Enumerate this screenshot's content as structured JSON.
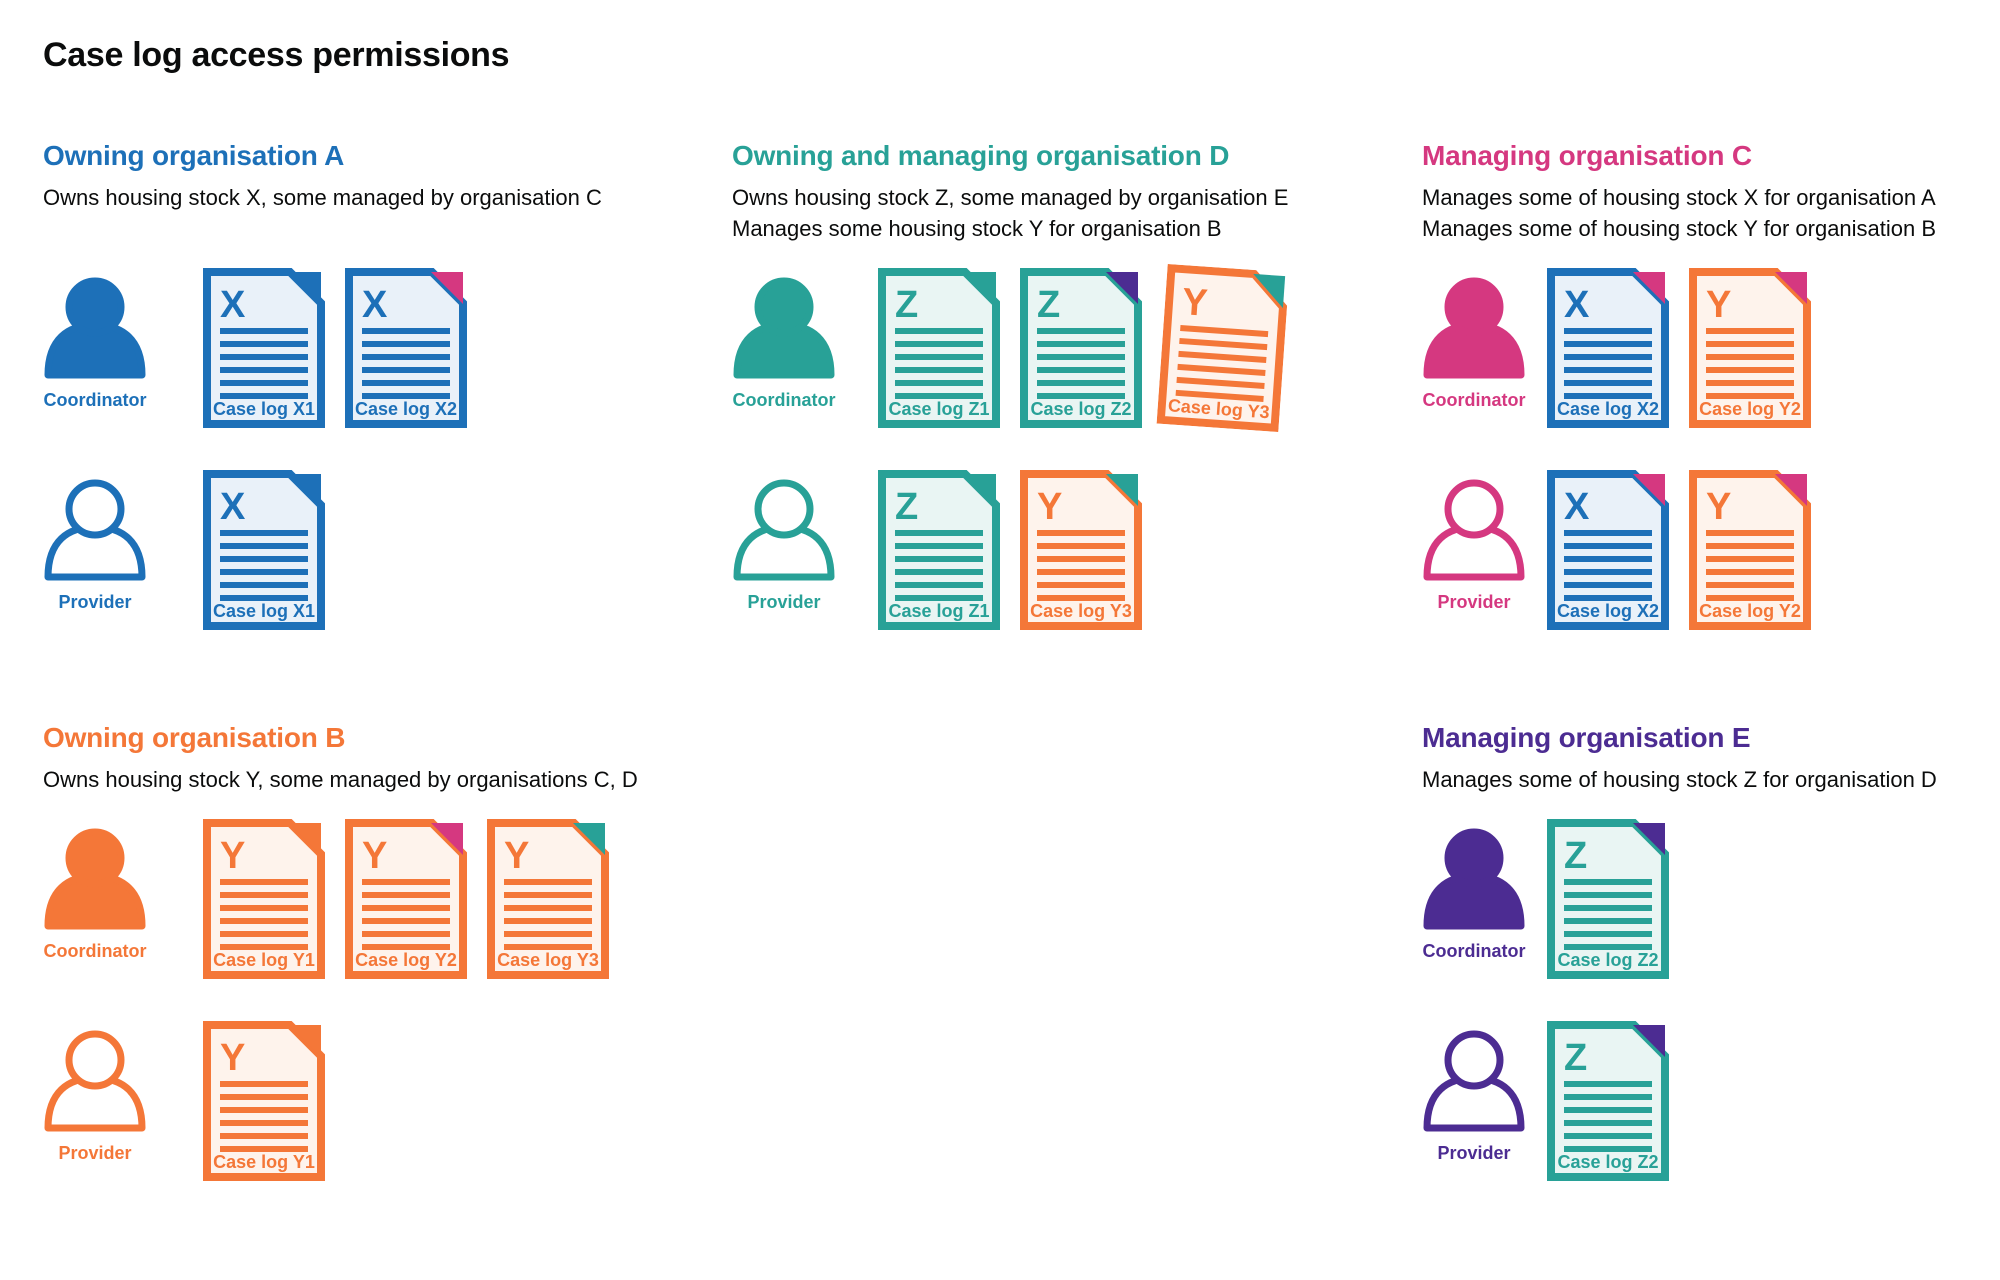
{
  "title": "Case log access permissions",
  "colors": {
    "blue": "#1d70b8",
    "teal": "#28a197",
    "pink": "#d53880",
    "orange": "#f47738",
    "purple": "#4c2c92",
    "text": "#0b0c0c",
    "background": "#ffffff"
  },
  "doc_tints": {
    "blue": "#e9f1f9",
    "teal": "#e9f5f3",
    "orange": "#fef3ec"
  },
  "sections": [
    {
      "id": "org-a",
      "heading": "Owning organisation A",
      "color": "blue",
      "description_lines": [
        "Owns housing stock X, some managed by organisation C"
      ],
      "rows": [
        {
          "role": "Coordinator",
          "person_style": "filled",
          "docs": [
            {
              "letter": "X",
              "label": "Case log X1",
              "doc_color": "blue",
              "fold_color": "blue",
              "tilt": 0
            },
            {
              "letter": "X",
              "label": "Case log X2",
              "doc_color": "blue",
              "fold_color": "pink",
              "tilt": 0
            }
          ]
        },
        {
          "role": "Provider",
          "person_style": "outline",
          "docs": [
            {
              "letter": "X",
              "label": "Case log X1",
              "doc_color": "blue",
              "fold_color": "blue",
              "tilt": 0
            }
          ]
        }
      ]
    },
    {
      "id": "org-d",
      "heading": "Owning and managing organisation D",
      "color": "teal",
      "description_lines": [
        "Owns housing stock Z, some managed by organisation E",
        "Manages some housing stock Y for organisation B"
      ],
      "rows": [
        {
          "role": "Coordinator",
          "person_style": "filled",
          "docs": [
            {
              "letter": "Z",
              "label": "Case log Z1",
              "doc_color": "teal",
              "fold_color": "teal",
              "tilt": 0
            },
            {
              "letter": "Z",
              "label": "Case log Z2",
              "doc_color": "teal",
              "fold_color": "purple",
              "tilt": 0
            },
            {
              "letter": "Y",
              "label": "Case log Y3",
              "doc_color": "orange",
              "fold_color": "teal",
              "tilt": 4
            }
          ]
        },
        {
          "role": "Provider",
          "person_style": "outline",
          "docs": [
            {
              "letter": "Z",
              "label": "Case log Z1",
              "doc_color": "teal",
              "fold_color": "teal",
              "tilt": 0
            },
            {
              "letter": "Y",
              "label": "Case log Y3",
              "doc_color": "orange",
              "fold_color": "teal",
              "tilt": 0
            }
          ]
        }
      ]
    },
    {
      "id": "org-c",
      "heading": "Managing organisation C",
      "color": "pink",
      "description_lines": [
        "Manages some of housing stock X for organisation A",
        "Manages some of housing stock Y for organisation B"
      ],
      "rows": [
        {
          "role": "Coordinator",
          "person_style": "filled",
          "docs": [
            {
              "letter": "X",
              "label": "Case log X2",
              "doc_color": "blue",
              "fold_color": "pink",
              "tilt": 0
            },
            {
              "letter": "Y",
              "label": "Case log Y2",
              "doc_color": "orange",
              "fold_color": "pink",
              "tilt": 0
            }
          ]
        },
        {
          "role": "Provider",
          "person_style": "outline",
          "docs": [
            {
              "letter": "X",
              "label": "Case log X2",
              "doc_color": "blue",
              "fold_color": "pink",
              "tilt": 0
            },
            {
              "letter": "Y",
              "label": "Case log Y2",
              "doc_color": "orange",
              "fold_color": "pink",
              "tilt": 0
            }
          ]
        }
      ]
    },
    {
      "id": "org-b",
      "heading": "Owning organisation B",
      "color": "orange",
      "description_lines": [
        "Owns housing stock Y, some managed by organisations C, D"
      ],
      "rows": [
        {
          "role": "Coordinator",
          "person_style": "filled",
          "docs": [
            {
              "letter": "Y",
              "label": "Case log Y1",
              "doc_color": "orange",
              "fold_color": "orange",
              "tilt": 0
            },
            {
              "letter": "Y",
              "label": "Case log Y2",
              "doc_color": "orange",
              "fold_color": "pink",
              "tilt": 0
            },
            {
              "letter": "Y",
              "label": "Case log Y3",
              "doc_color": "orange",
              "fold_color": "teal",
              "tilt": 0
            }
          ]
        },
        {
          "role": "Provider",
          "person_style": "outline",
          "docs": [
            {
              "letter": "Y",
              "label": "Case log Y1",
              "doc_color": "orange",
              "fold_color": "orange",
              "tilt": 0
            }
          ]
        }
      ]
    },
    {
      "id": "org-e",
      "heading": "Managing organisation E",
      "color": "purple",
      "description_lines": [
        "Manages some of housing stock Z for organisation D"
      ],
      "rows": [
        {
          "role": "Coordinator",
          "person_style": "filled",
          "docs": [
            {
              "letter": "Z",
              "label": "Case log Z2",
              "doc_color": "teal",
              "fold_color": "purple",
              "tilt": 0
            }
          ]
        },
        {
          "role": "Provider",
          "person_style": "outline",
          "docs": [
            {
              "letter": "Z",
              "label": "Case log Z2",
              "doc_color": "teal",
              "fold_color": "purple",
              "tilt": 0
            }
          ]
        }
      ]
    }
  ]
}
